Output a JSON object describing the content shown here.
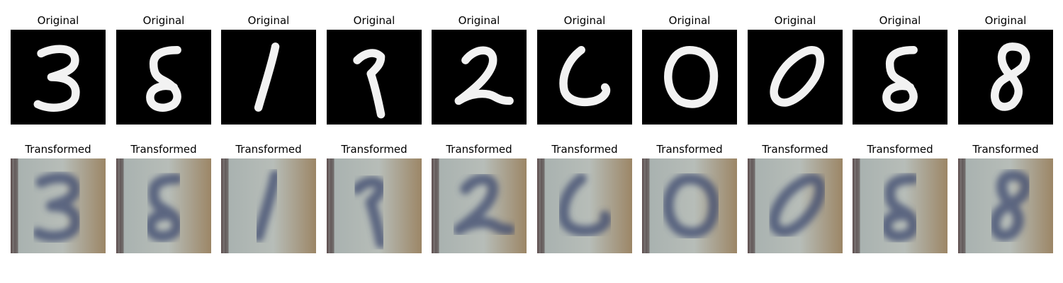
{
  "figure": {
    "rows": [
      {
        "row_name": "original",
        "panels": [
          {
            "title": "Original",
            "digit": "3"
          },
          {
            "title": "Original",
            "digit": "5"
          },
          {
            "title": "Original",
            "digit": "1"
          },
          {
            "title": "Original",
            "digit": "7"
          },
          {
            "title": "Original",
            "digit": "2"
          },
          {
            "title": "Original",
            "digit": "6"
          },
          {
            "title": "Original",
            "digit": "0"
          },
          {
            "title": "Original",
            "digit": "0"
          },
          {
            "title": "Original",
            "digit": "5"
          },
          {
            "title": "Original",
            "digit": "8"
          }
        ]
      },
      {
        "row_name": "transformed",
        "panels": [
          {
            "title": "Transformed",
            "digit": "3"
          },
          {
            "title": "Transformed",
            "digit": "5"
          },
          {
            "title": "Transformed",
            "digit": "1"
          },
          {
            "title": "Transformed",
            "digit": "7"
          },
          {
            "title": "Transformed",
            "digit": "2"
          },
          {
            "title": "Transformed",
            "digit": "6"
          },
          {
            "title": "Transformed",
            "digit": "0"
          },
          {
            "title": "Transformed",
            "digit": "0"
          },
          {
            "title": "Transformed",
            "digit": "5"
          },
          {
            "title": "Transformed",
            "digit": "8"
          }
        ]
      }
    ],
    "colors": {
      "original_background": "#000000",
      "original_stroke": "#f2f2f2",
      "transformed_background": "#b7bdb8",
      "transformed_stroke": "#3d4a6e",
      "transformed_edge_left": "#5a4a4a",
      "transformed_edge_right": "#9c8666"
    }
  }
}
